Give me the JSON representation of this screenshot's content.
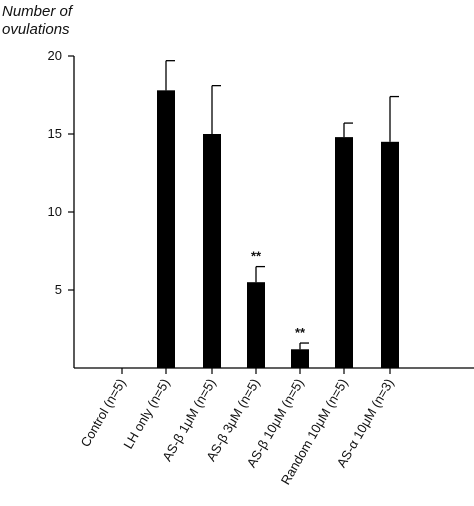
{
  "chart_data": {
    "type": "bar",
    "title": "",
    "ylabel_lines": [
      "Number of",
      "ovulations"
    ],
    "xlabel": "",
    "ylim": [
      0,
      20
    ],
    "yticks": [
      5,
      10,
      15,
      20
    ],
    "grid": false,
    "categories": [
      "Control (n=5)",
      "LH only (n=5)",
      "AS-β 1μM (n=5)",
      "AS-β 3μM (n=5)",
      "AS-β 10μM (n=5)",
      "Random 10μM (n=5)",
      "AS-α 10μM (n=3)"
    ],
    "values": [
      0,
      17.8,
      15.0,
      5.5,
      1.2,
      14.8,
      14.5
    ],
    "errors": [
      0,
      1.9,
      3.1,
      1.0,
      0.4,
      0.9,
      2.9
    ],
    "annotations": [
      "",
      "",
      "",
      "**",
      "**",
      "",
      ""
    ],
    "bar_color": "#000000"
  }
}
